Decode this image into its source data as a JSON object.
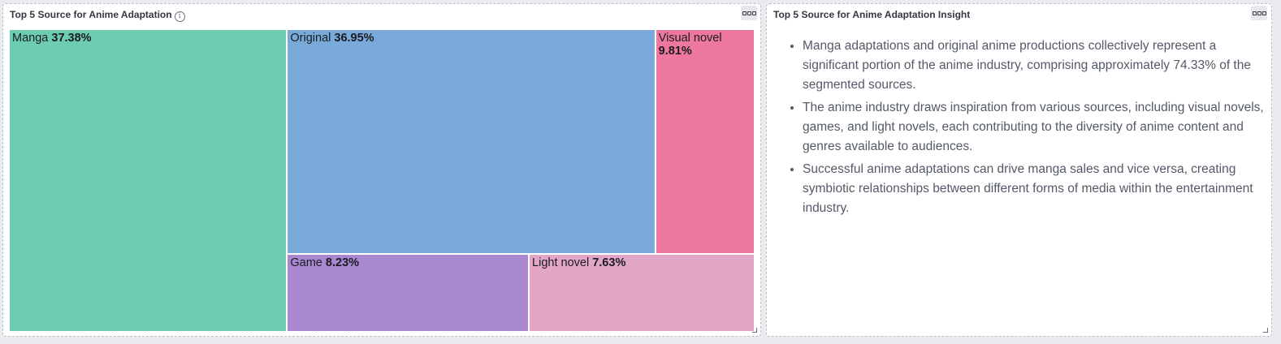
{
  "left_panel": {
    "title": "Top 5 Source for Anime Adaptation",
    "info_icon": "info-icon",
    "menu_icon": "options-icon"
  },
  "right_panel": {
    "title": "Top 5 Source for Anime Adaptation Insight",
    "menu_icon": "options-icon",
    "insights": [
      "Manga adaptations and original anime productions collectively represent a significant portion of the anime industry, comprising approximately 74.33% of the segmented sources.",
      "The anime industry draws inspiration from various sources, including visual novels, games, and light novels, each contributing to the diversity of anime content and genres available to audiences.",
      "Successful anime adaptations can drive manga sales and vice versa, creating symbiotic relationships between different forms of media within the entertainment industry."
    ]
  },
  "chart_data": {
    "type": "treemap",
    "title": "Top 5 Source for Anime Adaptation",
    "items": [
      {
        "label": "Manga",
        "value": 37.38,
        "value_label": "37.38%",
        "color": "#6dccb1"
      },
      {
        "label": "Original",
        "value": 36.95,
        "value_label": "36.95%",
        "color": "#79aad9"
      },
      {
        "label": "Visual novel",
        "value": 9.81,
        "value_label": "9.81%",
        "color": "#ee789d"
      },
      {
        "label": "Game",
        "value": 8.23,
        "value_label": "8.23%",
        "color": "#a987d1"
      },
      {
        "label": "Light novel",
        "value": 7.63,
        "value_label": "7.63%",
        "color": "#e4a6c7"
      }
    ]
  }
}
